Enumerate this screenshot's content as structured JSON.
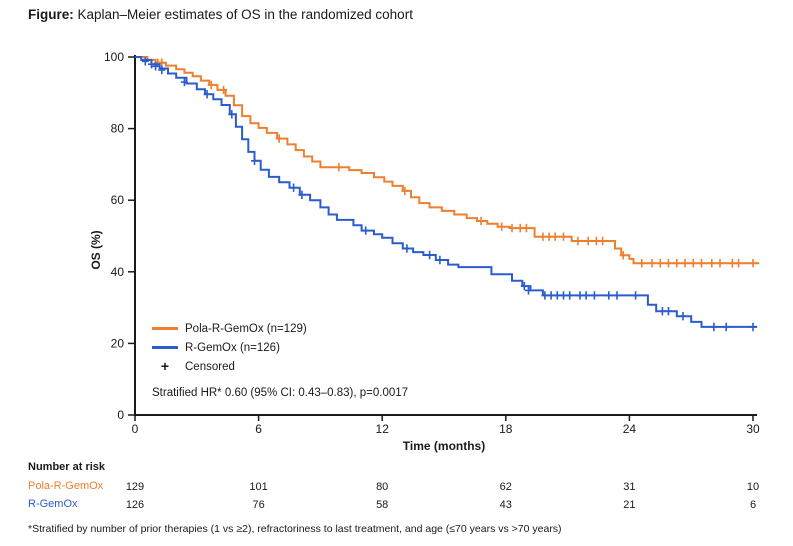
{
  "title": {
    "prefix": "Figure:",
    "text": "Kaplan–Meier estimates of OS in the randomized cohort"
  },
  "colors": {
    "pola": "#EE7F2F",
    "rgemox": "#2A5CCE",
    "axis": "#1a1a1a"
  },
  "chart_data": {
    "type": "line",
    "subtype": "kaplan-meier-step",
    "title": "Kaplan–Meier estimates of OS in the randomized cohort",
    "xlabel": "Time (months)",
    "ylabel": "OS (%)",
    "xlim": [
      0,
      30
    ],
    "ylim": [
      0,
      100
    ],
    "x_ticks": [
      0,
      6,
      12,
      18,
      24,
      30
    ],
    "y_ticks": [
      0,
      20,
      40,
      60,
      80,
      100
    ],
    "grid": false,
    "legend_position": "inside-lower-left",
    "censored_marker": "+",
    "censored_label": "Censored",
    "annotation": "Stratified HR* 0.60 (95% CI: 0.43–0.83), p=0.0017",
    "series": [
      {
        "name": "Pola-R-GemOx (n=129)",
        "color": "#EE7F2F",
        "n": 129,
        "points": [
          [
            0,
            100
          ],
          [
            0.6,
            99.2
          ],
          [
            1.0,
            98.4
          ],
          [
            1.5,
            97.6
          ],
          [
            2.0,
            96.6
          ],
          [
            2.4,
            95.6
          ],
          [
            2.8,
            94.6
          ],
          [
            3.2,
            93.4
          ],
          [
            3.6,
            92.2
          ],
          [
            4.0,
            90.8
          ],
          [
            4.4,
            89.2
          ],
          [
            4.8,
            86.5
          ],
          [
            5.2,
            83.5
          ],
          [
            5.6,
            81.5
          ],
          [
            6.0,
            80.2
          ],
          [
            6.4,
            78.8
          ],
          [
            6.9,
            77.2
          ],
          [
            7.4,
            75.6
          ],
          [
            7.8,
            74.0
          ],
          [
            8.2,
            72.2
          ],
          [
            8.6,
            70.8
          ],
          [
            9.0,
            69.2
          ],
          [
            10.4,
            68.4
          ],
          [
            11.0,
            67.6
          ],
          [
            11.6,
            66.4
          ],
          [
            12.1,
            65.2
          ],
          [
            12.5,
            64.0
          ],
          [
            13.0,
            62.6
          ],
          [
            13.4,
            60.8
          ],
          [
            13.8,
            59.2
          ],
          [
            14.3,
            58.0
          ],
          [
            14.9,
            57.0
          ],
          [
            15.5,
            56.0
          ],
          [
            16.1,
            55.0
          ],
          [
            16.6,
            54.2
          ],
          [
            17.1,
            53.4
          ],
          [
            17.6,
            52.6
          ],
          [
            18.2,
            52.2
          ],
          [
            19.4,
            49.8
          ],
          [
            21.2,
            48.6
          ],
          [
            23.3,
            46.5
          ],
          [
            23.6,
            44.6
          ],
          [
            24.0,
            43.6
          ],
          [
            24.2,
            42.4
          ],
          [
            30.3,
            42.4
          ]
        ],
        "censors": [
          [
            1.1,
            98.4
          ],
          [
            1.3,
            98.4
          ],
          [
            3.7,
            92.2
          ],
          [
            4.3,
            90.8
          ],
          [
            7.0,
            77.2
          ],
          [
            9.9,
            69.2
          ],
          [
            13.1,
            62.6
          ],
          [
            16.8,
            54.2
          ],
          [
            17.8,
            52.6
          ],
          [
            18.3,
            52.2
          ],
          [
            18.7,
            52.2
          ],
          [
            19.0,
            52.2
          ],
          [
            19.8,
            49.8
          ],
          [
            20.1,
            49.8
          ],
          [
            20.4,
            49.8
          ],
          [
            20.8,
            49.8
          ],
          [
            21.5,
            48.6
          ],
          [
            22.0,
            48.6
          ],
          [
            22.4,
            48.6
          ],
          [
            22.7,
            48.6
          ],
          [
            23.7,
            44.6
          ],
          [
            24.6,
            42.4
          ],
          [
            25.1,
            42.4
          ],
          [
            25.5,
            42.4
          ],
          [
            25.9,
            42.4
          ],
          [
            26.3,
            42.4
          ],
          [
            26.7,
            42.4
          ],
          [
            27.1,
            42.4
          ],
          [
            27.5,
            42.4
          ],
          [
            28.0,
            42.4
          ],
          [
            28.4,
            42.4
          ],
          [
            29.0,
            42.4
          ],
          [
            29.3,
            42.4
          ],
          [
            30.0,
            42.4
          ]
        ]
      },
      {
        "name": "R-GemOx (n=126)",
        "color": "#2A5CCE",
        "n": 126,
        "points": [
          [
            0,
            100
          ],
          [
            0.3,
            99.2
          ],
          [
            0.8,
            98.0
          ],
          [
            1.2,
            96.8
          ],
          [
            1.6,
            95.4
          ],
          [
            2.0,
            94.2
          ],
          [
            2.5,
            92.6
          ],
          [
            3.0,
            91.0
          ],
          [
            3.4,
            89.6
          ],
          [
            3.8,
            88.2
          ],
          [
            4.2,
            86.6
          ],
          [
            4.6,
            84.0
          ],
          [
            4.9,
            80.5
          ],
          [
            5.2,
            77.0
          ],
          [
            5.5,
            73.5
          ],
          [
            5.8,
            71.0
          ],
          [
            6.1,
            68.5
          ],
          [
            6.5,
            66.5
          ],
          [
            7.0,
            65.0
          ],
          [
            7.5,
            63.5
          ],
          [
            8.0,
            61.5
          ],
          [
            8.5,
            60.0
          ],
          [
            9.0,
            58.0
          ],
          [
            9.4,
            56.0
          ],
          [
            9.8,
            54.5
          ],
          [
            10.6,
            53.0
          ],
          [
            11.0,
            51.5
          ],
          [
            11.6,
            50.5
          ],
          [
            12.0,
            49.5
          ],
          [
            12.5,
            48.0
          ],
          [
            13.0,
            46.5
          ],
          [
            13.5,
            45.5
          ],
          [
            14.0,
            44.7
          ],
          [
            14.6,
            43.3
          ],
          [
            15.2,
            42.0
          ],
          [
            15.7,
            41.3
          ],
          [
            17.3,
            39.3
          ],
          [
            18.3,
            37.5
          ],
          [
            18.8,
            36.0
          ],
          [
            19.2,
            34.8
          ],
          [
            19.8,
            33.4
          ],
          [
            24.9,
            30.8
          ],
          [
            25.3,
            29.0
          ],
          [
            26.3,
            27.6
          ],
          [
            27.0,
            26.0
          ],
          [
            27.5,
            24.6
          ],
          [
            30.2,
            24.6
          ]
        ],
        "censors": [
          [
            0.5,
            98.8
          ],
          [
            0.8,
            98.0
          ],
          [
            1.0,
            97.4
          ],
          [
            1.3,
            96.4
          ],
          [
            2.4,
            93.0
          ],
          [
            3.5,
            89.6
          ],
          [
            4.7,
            84.0
          ],
          [
            5.8,
            71.0
          ],
          [
            7.7,
            63.5
          ],
          [
            8.1,
            61.5
          ],
          [
            11.2,
            51.5
          ],
          [
            13.2,
            46.5
          ],
          [
            14.3,
            44.7
          ],
          [
            14.8,
            43.3
          ],
          [
            18.9,
            36.0
          ],
          [
            19.1,
            34.8
          ],
          [
            19.9,
            33.4
          ],
          [
            20.2,
            33.4
          ],
          [
            20.5,
            33.4
          ],
          [
            20.8,
            33.4
          ],
          [
            21.1,
            33.4
          ],
          [
            21.6,
            33.4
          ],
          [
            21.9,
            33.4
          ],
          [
            22.3,
            33.4
          ],
          [
            23.0,
            33.4
          ],
          [
            23.4,
            33.4
          ],
          [
            24.3,
            33.4
          ],
          [
            25.6,
            29.0
          ],
          [
            25.9,
            29.0
          ],
          [
            26.6,
            27.6
          ],
          [
            28.1,
            24.6
          ],
          [
            28.7,
            24.6
          ],
          [
            30.0,
            24.6
          ]
        ]
      }
    ]
  },
  "risk_table": {
    "header": "Number at risk",
    "times": [
      0,
      6,
      12,
      18,
      24,
      30
    ],
    "rows": [
      {
        "label": "Pola-R-GemOx",
        "color": "#EE7F2F",
        "values": [
          129,
          101,
          80,
          62,
          31,
          10
        ]
      },
      {
        "label": "R-GemOx",
        "color": "#2A5CCE",
        "values": [
          126,
          76,
          58,
          43,
          21,
          6
        ]
      }
    ]
  },
  "footnote": "*Stratified by number of prior therapies (1 vs ≥2), refractoriness to last treatment, and age (≤70 years vs >70 years)"
}
